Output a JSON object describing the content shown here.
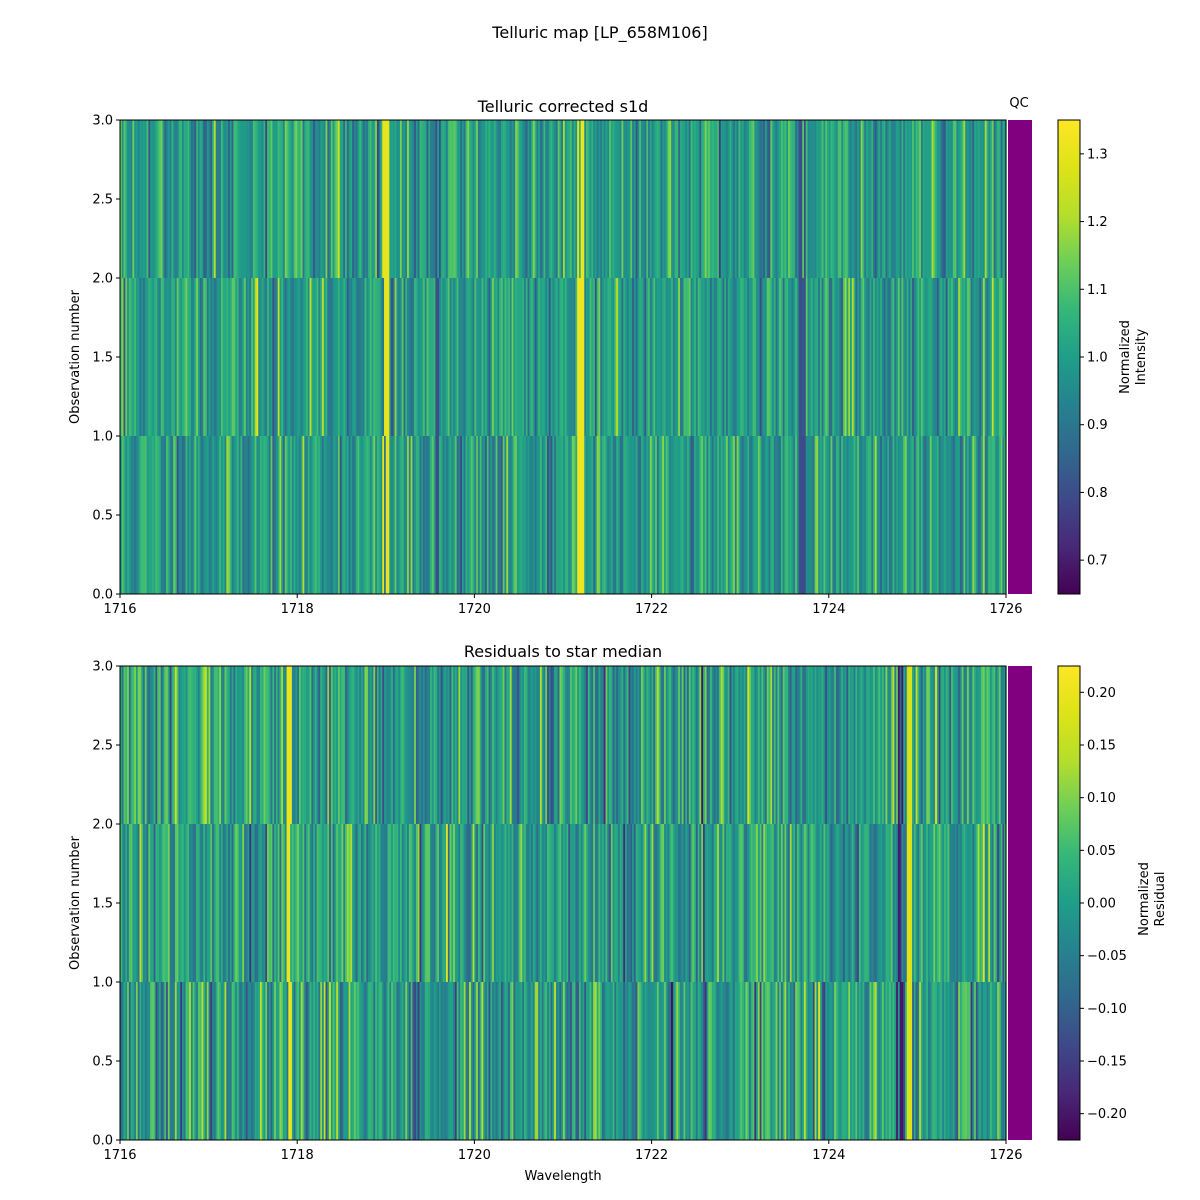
{
  "figure": {
    "suptitle": "Telluric map [LP_658M106]",
    "colors": {
      "qc_flag": "#800080",
      "frame": "#000000",
      "background": "#ffffff"
    },
    "colormap": "viridis"
  },
  "chart_data": [
    {
      "type": "heatmap",
      "title": "Telluric corrected s1d",
      "xlabel": "",
      "ylabel": "Observation number",
      "xlim": [
        1716,
        1726
      ],
      "ylim": [
        0,
        3
      ],
      "xticks": [
        "1716",
        "1718",
        "1720",
        "1722",
        "1724",
        "1726"
      ],
      "yticks": [
        "0.0",
        "0.5",
        "1.0",
        "1.5",
        "2.0",
        "2.5",
        "3.0"
      ],
      "rows": 3,
      "n_columns": 500,
      "seed": 11,
      "noise_sigma": 0.08,
      "qc_label": "QC",
      "qc_status": "flagged",
      "colorbar": {
        "label_line1": "Normalized",
        "label_line2": "Intensity",
        "vmin": 0.65,
        "vmax": 1.35,
        "ticks": [
          "0.7",
          "0.8",
          "0.9",
          "1.0",
          "1.1",
          "1.2",
          "1.3"
        ]
      },
      "notable_features": [
        {
          "wavelength": 1719.0,
          "value": 1.3
        },
        {
          "wavelength": 1721.2,
          "value": 1.32
        },
        {
          "wavelength": 1719.6,
          "value": 0.8
        },
        {
          "wavelength": 1723.7,
          "value": 0.8
        }
      ]
    },
    {
      "type": "heatmap",
      "title": "Residuals to star median",
      "xlabel": "Wavelength",
      "ylabel": "Observation number",
      "xlim": [
        1716,
        1726
      ],
      "ylim": [
        0,
        3
      ],
      "xticks": [
        "1716",
        "1718",
        "1720",
        "1722",
        "1724",
        "1726"
      ],
      "yticks": [
        "0.0",
        "0.5",
        "1.0",
        "1.5",
        "2.0",
        "2.5",
        "3.0"
      ],
      "rows": 3,
      "n_columns": 500,
      "seed": 23,
      "noise_sigma": 0.06,
      "qc_label": "",
      "qc_status": "flagged",
      "colorbar": {
        "label_line1": "Normalized",
        "label_line2": "Residual",
        "vmin": -0.225,
        "vmax": 0.225,
        "ticks": [
          "0.20",
          "0.15",
          "0.10",
          "0.05",
          "0.00",
          "−0.05",
          "−0.10",
          "−0.15",
          "−0.20"
        ]
      },
      "notable_features": [
        {
          "wavelength": 1717.9,
          "value": 0.2
        },
        {
          "wavelength": 1724.9,
          "value": 0.18
        },
        {
          "wavelength": 1724.8,
          "value": -0.2
        }
      ]
    }
  ]
}
